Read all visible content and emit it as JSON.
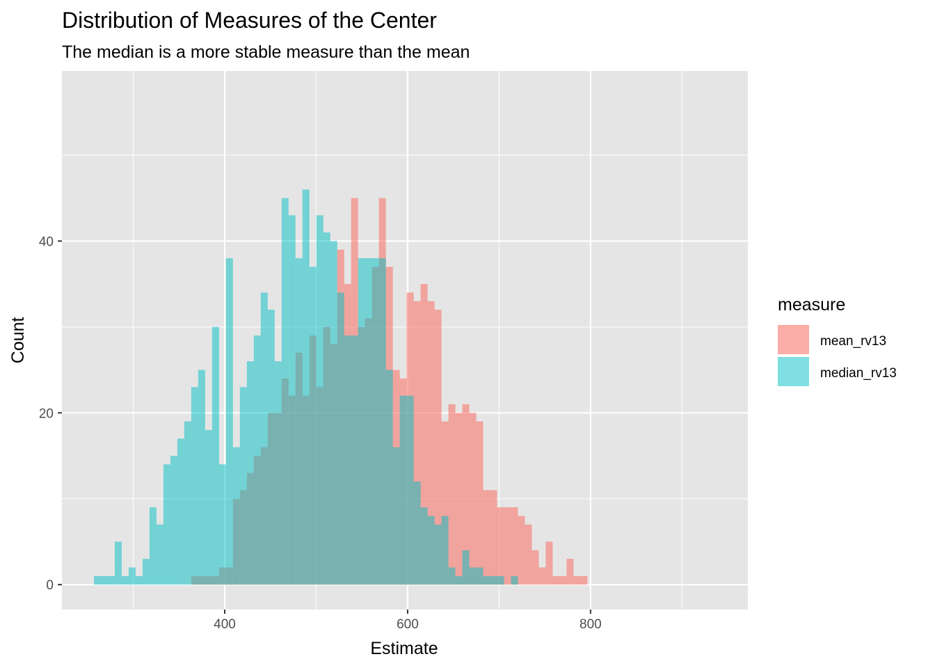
{
  "chart_data": {
    "type": "histogram",
    "title": "Distribution of Measures of the Center",
    "subtitle": "The median is a more stable measure than the mean",
    "xlabel": "Estimate",
    "ylabel": "Count",
    "xlim": [
      222,
      972
    ],
    "ylim": [
      -2.9,
      59.8
    ],
    "x_ticks": [
      400,
      600,
      800
    ],
    "y_ticks": [
      0,
      20,
      40
    ],
    "bin_start": 257,
    "bin_width": 7.6,
    "grid": true,
    "legend": {
      "title": "measure",
      "position": "right",
      "entries": [
        {
          "label": "mean_rv13",
          "color": "#f8766d"
        },
        {
          "label": "median_rv13",
          "color": "#00bfc4"
        }
      ]
    },
    "series": [
      {
        "name": "mean_rv13",
        "color": "#f8766d",
        "counts": [
          0,
          0,
          0,
          0,
          0,
          0,
          0,
          0,
          0,
          0,
          0,
          0,
          0,
          0,
          1,
          1,
          1,
          1,
          2,
          2,
          10,
          11,
          13,
          15,
          16,
          20,
          20,
          24,
          22,
          27,
          22,
          29,
          23,
          30,
          28,
          39,
          35,
          45,
          30,
          31,
          37,
          45,
          37,
          25,
          24,
          34,
          33,
          35,
          33,
          32,
          19,
          21,
          20,
          21,
          20,
          19,
          11,
          11,
          9,
          9,
          9,
          8,
          7,
          4,
          2,
          5,
          1,
          1,
          3,
          1,
          1,
          0,
          0,
          0,
          0,
          0,
          0,
          0,
          0,
          0,
          0,
          0,
          0,
          0,
          0,
          0,
          0,
          0,
          0,
          0,
          0,
          0,
          0,
          0,
          0,
          0,
          0,
          0,
          0,
          0,
          0,
          0,
          0,
          0
        ]
      },
      {
        "name": "median_rv13",
        "color": "#00bfc4",
        "counts": [
          1,
          1,
          1,
          5,
          1,
          2,
          1,
          3,
          9,
          7,
          14,
          15,
          17,
          19,
          23,
          25,
          18,
          30,
          14,
          38,
          16,
          23,
          26,
          29,
          34,
          32,
          26,
          45,
          43,
          38,
          46,
          37,
          43,
          41,
          40,
          34,
          29,
          29,
          38,
          38,
          38,
          38,
          25,
          16,
          22,
          22,
          12,
          9,
          8,
          7,
          8,
          2,
          1,
          4,
          2,
          2,
          1,
          1,
          1,
          0,
          1,
          0,
          0,
          0,
          0,
          0,
          0,
          0,
          0,
          0,
          0,
          0,
          0,
          0,
          0,
          0,
          0,
          0,
          0,
          0,
          0,
          0,
          0,
          0,
          0,
          0,
          0,
          0,
          0,
          0,
          0,
          0,
          0,
          0,
          0,
          0,
          0,
          0,
          0,
          0,
          0,
          0,
          0,
          0
        ]
      }
    ]
  }
}
